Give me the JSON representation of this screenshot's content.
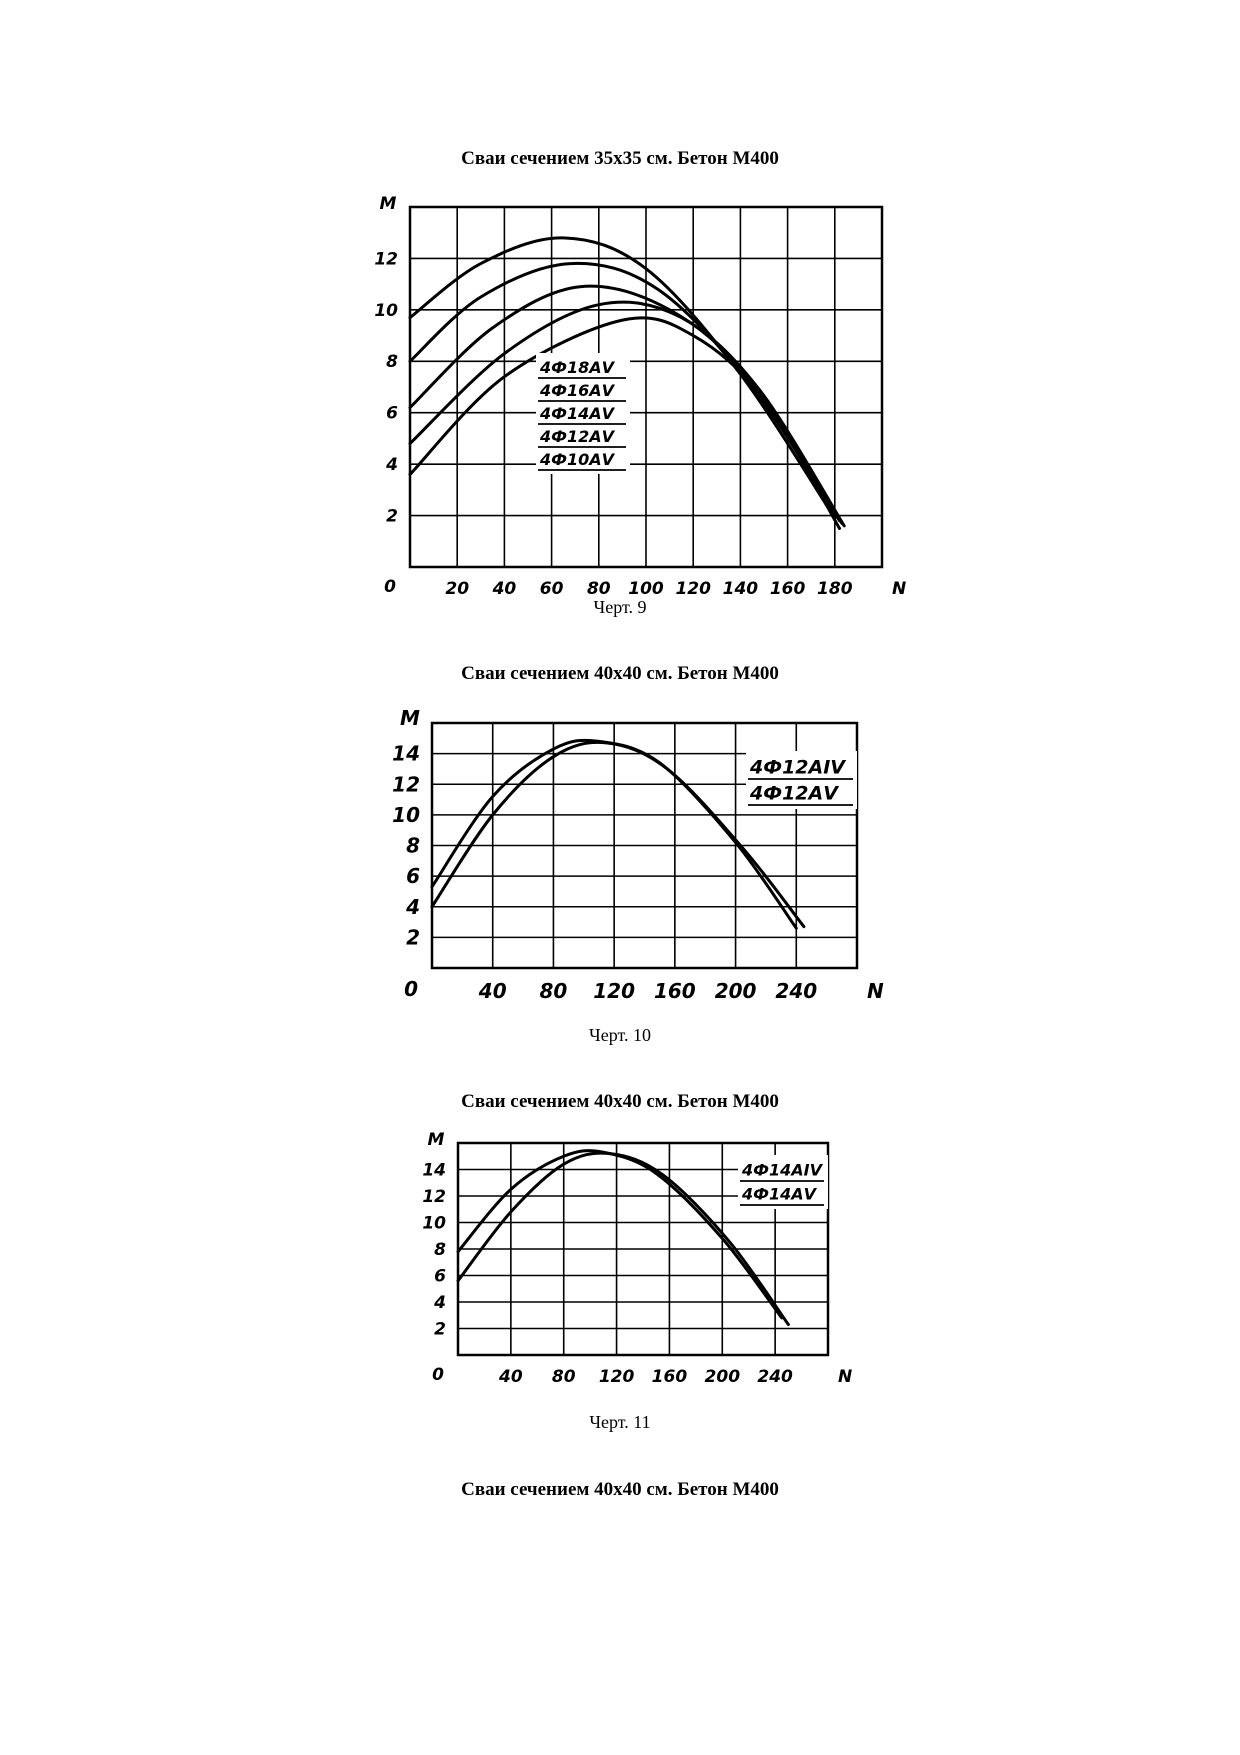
{
  "sections": [
    {
      "title": "Сваи сечением 35x35 см. Бетон М400",
      "caption": "Черт. 9"
    },
    {
      "title": "Сваи сечением 40x40 см. Бетон М400",
      "caption": "Черт. 10"
    },
    {
      "title": "Сваи сечением 40x40 см. Бетон М400",
      "caption": "Черт. 11"
    },
    {
      "title": "Сваи сечением 40x40 см. Бетон М400"
    }
  ],
  "chart_data": [
    {
      "type": "line",
      "ylabel": "M",
      "xlabel": "N",
      "origin_label": "0",
      "xlim": [
        0,
        200
      ],
      "ylim": [
        0,
        14
      ],
      "x_ticks": [
        20,
        40,
        60,
        80,
        100,
        120,
        140,
        160,
        180
      ],
      "y_ticks": [
        2,
        4,
        6,
        8,
        10,
        12
      ],
      "grid": true,
      "legend_position": "center",
      "series": [
        {
          "name": "4Ф18АV",
          "points": [
            [
              0,
              9.7
            ],
            [
              30,
              11.8
            ],
            [
              65,
              12.8
            ],
            [
              100,
              11.6
            ],
            [
              140,
              7.5
            ],
            [
              180,
              1.9
            ]
          ]
        },
        {
          "name": "4Ф16АV",
          "points": [
            [
              0,
              8.0
            ],
            [
              30,
              10.5
            ],
            [
              68,
              11.8
            ],
            [
              105,
              10.8
            ],
            [
              145,
              7.0
            ],
            [
              182,
              1.8
            ]
          ]
        },
        {
          "name": "4Ф14АV",
          "points": [
            [
              0,
              6.2
            ],
            [
              35,
              9.3
            ],
            [
              72,
              10.9
            ],
            [
              110,
              10.0
            ],
            [
              145,
              7.2
            ],
            [
              183,
              1.7
            ]
          ]
        },
        {
          "name": "4Ф12АV",
          "points": [
            [
              0,
              4.8
            ],
            [
              40,
              8.3
            ],
            [
              80,
              10.2
            ],
            [
              115,
              9.7
            ],
            [
              148,
              6.9
            ],
            [
              184,
              1.6
            ]
          ]
        },
        {
          "name": "4Ф10АV",
          "points": [
            [
              0,
              3.6
            ],
            [
              40,
              7.4
            ],
            [
              90,
              9.6
            ],
            [
              120,
              9.0
            ],
            [
              150,
              6.5
            ],
            [
              182,
              1.5
            ]
          ]
        }
      ]
    },
    {
      "type": "line",
      "ylabel": "M",
      "xlabel": "N",
      "origin_label": "0",
      "xlim": [
        0,
        280
      ],
      "ylim": [
        0,
        16
      ],
      "x_ticks": [
        40,
        80,
        120,
        160,
        200,
        240
      ],
      "y_ticks": [
        2,
        4,
        6,
        8,
        10,
        12,
        14
      ],
      "grid": true,
      "legend_position": "top-right",
      "series": [
        {
          "name": "4Ф12АIV",
          "points": [
            [
              0,
              5.3
            ],
            [
              40,
              11.2
            ],
            [
              80,
              14.3
            ],
            [
              110,
              14.8
            ],
            [
              150,
              13.4
            ],
            [
              200,
              8.2
            ],
            [
              240,
              2.6
            ]
          ]
        },
        {
          "name": "4Ф12АV",
          "points": [
            [
              0,
              4.0
            ],
            [
              40,
              10.0
            ],
            [
              80,
              13.8
            ],
            [
              115,
              14.7
            ],
            [
              155,
              13.0
            ],
            [
              205,
              7.8
            ],
            [
              245,
              2.7
            ]
          ]
        }
      ]
    },
    {
      "type": "line",
      "ylabel": "M",
      "xlabel": "N",
      "origin_label": "0",
      "xlim": [
        0,
        280
      ],
      "ylim": [
        0,
        16
      ],
      "x_ticks": [
        40,
        80,
        120,
        160,
        200,
        240
      ],
      "y_ticks": [
        2,
        4,
        6,
        8,
        10,
        12,
        14
      ],
      "grid": true,
      "legend_position": "top-right",
      "series": [
        {
          "name": "4Ф14АIV",
          "points": [
            [
              0,
              7.8
            ],
            [
              40,
              12.5
            ],
            [
              80,
              15.0
            ],
            [
              110,
              15.3
            ],
            [
              150,
              13.7
            ],
            [
              200,
              8.8
            ],
            [
              245,
              2.8
            ]
          ]
        },
        {
          "name": "4Ф14АV",
          "points": [
            [
              0,
              5.6
            ],
            [
              40,
              10.8
            ],
            [
              80,
              14.4
            ],
            [
              115,
              15.2
            ],
            [
              155,
              13.6
            ],
            [
              205,
              8.6
            ],
            [
              250,
              2.3
            ]
          ]
        }
      ]
    }
  ]
}
